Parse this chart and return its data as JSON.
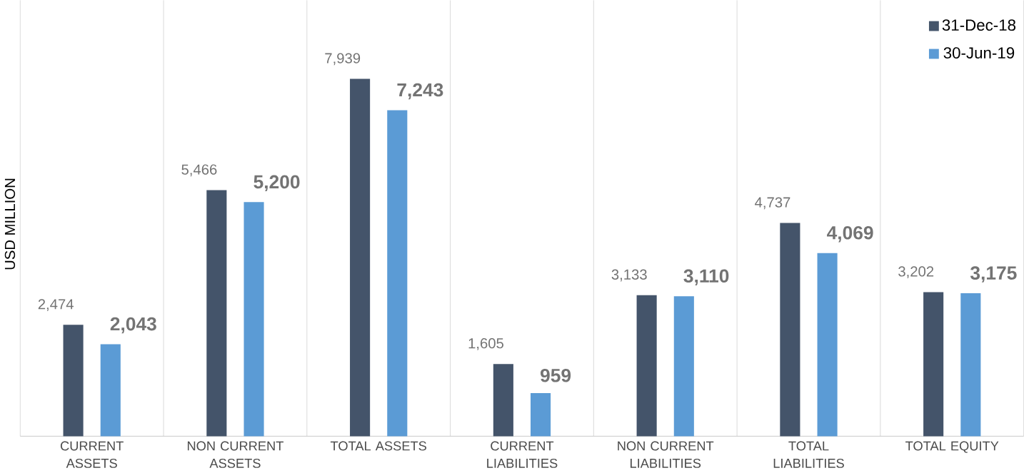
{
  "chart_data": {
    "type": "bar",
    "ylabel": "USD MILLION",
    "categories": [
      "CURRENT ASSETS",
      "NON CURRENT ASSETS",
      "TOTAL ASSETS",
      "CURRENT LIABILITIES",
      "NON CURRENT LIABILITIES",
      "TOTAL LIABILITIES",
      "TOTAL EQUITY"
    ],
    "series": [
      {
        "name": "31-Dec-18",
        "color": "#44546a",
        "values": [
          2474,
          5466,
          7939,
          1605,
          3133,
          4737,
          3202
        ],
        "value_labels": [
          "2,474",
          "5,466",
          "7,939",
          "1,605",
          "3,133",
          "4,737",
          "3,202"
        ]
      },
      {
        "name": "30-Jun-19",
        "color": "#5b9bd5",
        "values": [
          2043,
          5200,
          7243,
          959,
          3110,
          4069,
          3175
        ],
        "value_labels": [
          "2,043",
          "5,200",
          "7,243",
          "959",
          "3,110",
          "4,069",
          "3,175"
        ]
      }
    ],
    "grid": "x",
    "legend": "top right"
  }
}
